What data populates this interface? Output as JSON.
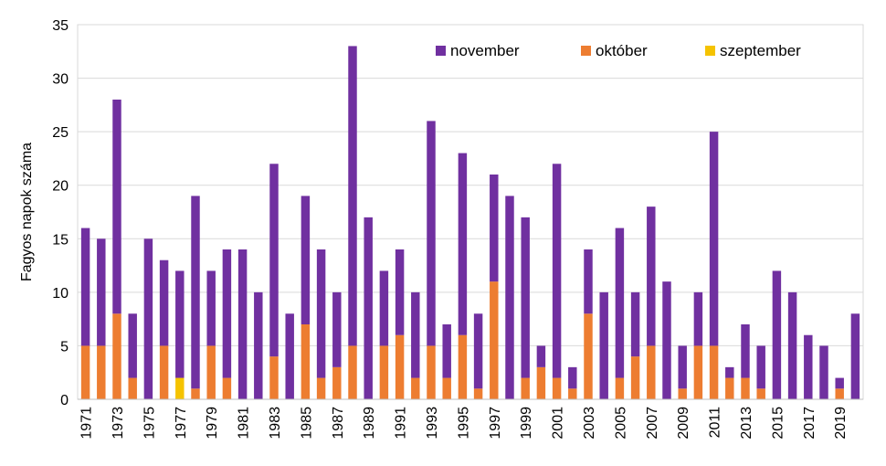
{
  "chart_data": {
    "type": "bar",
    "stacked": true,
    "ylabel": "Fagyos napok száma",
    "ylim": [
      0,
      35
    ],
    "yticks": [
      0,
      5,
      10,
      15,
      20,
      25,
      30,
      35
    ],
    "grid": true,
    "legend_position": "top-right",
    "x": [
      1971,
      1972,
      1973,
      1974,
      1975,
      1976,
      1977,
      1978,
      1979,
      1980,
      1981,
      1982,
      1983,
      1984,
      1985,
      1986,
      1987,
      1988,
      1989,
      1990,
      1991,
      1992,
      1993,
      1994,
      1995,
      1996,
      1997,
      1998,
      1999,
      2000,
      2001,
      2002,
      2003,
      2004,
      2005,
      2006,
      2007,
      2008,
      2009,
      2010,
      2011,
      2012,
      2013,
      2014,
      2015,
      2016,
      2017,
      2018,
      2019,
      2020
    ],
    "xtick_labels": [
      "1971",
      "1973",
      "1975",
      "1977",
      "1979",
      "1981",
      "1983",
      "1985",
      "1987",
      "1989",
      "1991",
      "1993",
      "1995",
      "1997",
      "1999",
      "2001",
      "2003",
      "2005",
      "2007",
      "2009",
      "2011",
      "2013",
      "2015",
      "2017",
      "2019"
    ],
    "series": [
      {
        "name": "szeptember",
        "color": "#f5c300",
        "values": [
          0,
          0,
          0,
          0,
          0,
          0,
          2,
          0,
          0,
          0,
          0,
          0,
          0,
          0,
          0,
          0,
          0,
          0,
          0,
          0,
          0,
          0,
          0,
          0,
          0,
          0,
          0,
          0,
          0,
          0,
          0,
          0,
          0,
          0,
          0,
          0,
          0,
          0,
          0,
          0,
          0,
          0,
          0,
          0,
          0,
          0,
          0,
          0,
          0,
          0
        ]
      },
      {
        "name": "október",
        "color": "#ed7d31",
        "values": [
          5,
          5,
          8,
          2,
          0,
          5,
          0,
          1,
          5,
          2,
          0,
          0,
          4,
          0,
          7,
          2,
          3,
          5,
          0,
          5,
          6,
          2,
          5,
          2,
          6,
          1,
          11,
          0,
          2,
          3,
          2,
          1,
          8,
          0,
          2,
          4,
          5,
          0,
          1,
          5,
          5,
          2,
          2,
          1,
          0,
          0,
          0,
          0,
          1,
          0
        ]
      },
      {
        "name": "november",
        "color": "#7030a0",
        "values": [
          11,
          10,
          20,
          6,
          15,
          8,
          10,
          18,
          7,
          12,
          14,
          10,
          18,
          8,
          12,
          12,
          7,
          28,
          17,
          7,
          8,
          8,
          21,
          5,
          17,
          7,
          10,
          19,
          15,
          2,
          20,
          2,
          6,
          10,
          14,
          6,
          13,
          11,
          4,
          5,
          20,
          1,
          5,
          4,
          12,
          10,
          6,
          5,
          1,
          8
        ]
      }
    ],
    "legend_order": [
      "november",
      "október",
      "szeptember"
    ]
  }
}
